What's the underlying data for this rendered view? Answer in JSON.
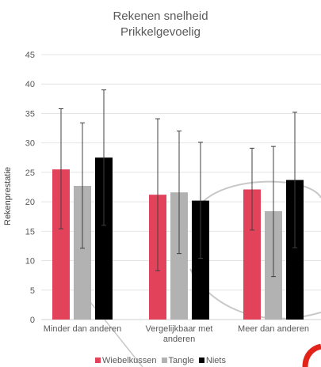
{
  "chart_data": {
    "type": "bar",
    "title": "Rekenen snelheid",
    "subtitle": "Prikkelgevoelig",
    "xlabel": "",
    "ylabel": "Rekenprestatie",
    "ylim": [
      0,
      45
    ],
    "yticks": [
      "0",
      "5",
      "10",
      "15",
      "20",
      "25",
      "30",
      "35",
      "40",
      "45"
    ],
    "categories": [
      [
        "Minder dan anderen"
      ],
      [
        "Vergelijkbaar met",
        "anderen"
      ],
      [
        "Meer dan anderen"
      ]
    ],
    "series": [
      {
        "name": "Wiebelkussen",
        "color": "#e2435b",
        "values": [
          25.5,
          21.2,
          22.1
        ],
        "error_low": [
          15.4,
          8.3,
          15.2
        ],
        "error_high": [
          35.8,
          34.1,
          29.1
        ]
      },
      {
        "name": "Tangle",
        "color": "#b2b2b2",
        "values": [
          22.7,
          21.6,
          18.4
        ],
        "error_low": [
          12.1,
          11.2,
          7.3
        ],
        "error_high": [
          33.4,
          32.0,
          29.4
        ]
      },
      {
        "name": "Niets",
        "color": "#000000",
        "values": [
          27.5,
          20.2,
          23.7
        ],
        "error_low": [
          16.0,
          10.4,
          12.2
        ],
        "error_high": [
          39.0,
          30.1,
          35.2
        ]
      }
    ],
    "grid": true,
    "legend_position": "bottom"
  }
}
